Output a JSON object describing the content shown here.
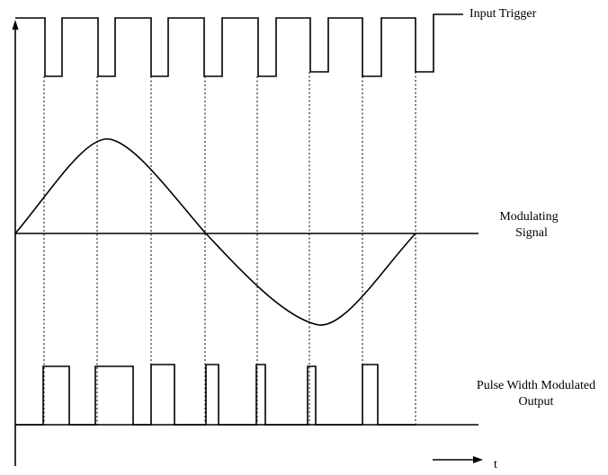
{
  "labels": {
    "input_trigger": "Input Trigger",
    "modulating_line1": "Modulating",
    "modulating_line2": "Signal",
    "pwm_line1": "Pulse Width Modulated",
    "pwm_line2": "Output",
    "time_axis": "t"
  },
  "colors": {
    "stroke": "#000000",
    "background": "#ffffff"
  }
}
